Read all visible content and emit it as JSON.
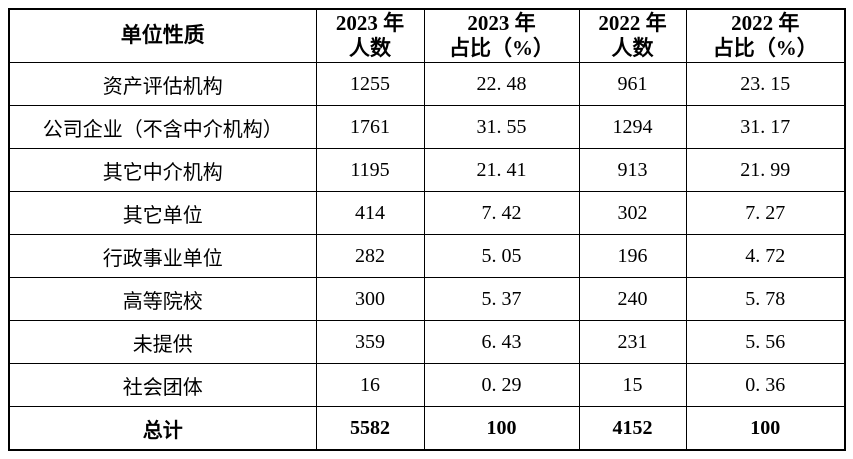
{
  "table": {
    "headers": [
      {
        "line1": "单位性质",
        "line2": ""
      },
      {
        "line1": "2023 年",
        "line2": "人数"
      },
      {
        "line1": "2023 年",
        "line2": "占比（%）"
      },
      {
        "line1": "2022 年",
        "line2": "人数"
      },
      {
        "line1": "2022 年",
        "line2": "占比（%）"
      }
    ],
    "rows": [
      {
        "label": "资产评估机构",
        "count_2023": "1255",
        "pct_2023": "22. 48",
        "count_2022": "961",
        "pct_2022": "23. 15"
      },
      {
        "label": "公司企业（不含中介机构）",
        "count_2023": "1761",
        "pct_2023": "31. 55",
        "count_2022": "1294",
        "pct_2022": "31. 17"
      },
      {
        "label": "其它中介机构",
        "count_2023": "1195",
        "pct_2023": "21. 41",
        "count_2022": "913",
        "pct_2022": "21. 99"
      },
      {
        "label": "其它单位",
        "count_2023": "414",
        "pct_2023": "7. 42",
        "count_2022": "302",
        "pct_2022": "7. 27"
      },
      {
        "label": "行政事业单位",
        "count_2023": "282",
        "pct_2023": "5. 05",
        "count_2022": "196",
        "pct_2022": "4. 72"
      },
      {
        "label": "高等院校",
        "count_2023": "300",
        "pct_2023": "5. 37",
        "count_2022": "240",
        "pct_2022": "5. 78"
      },
      {
        "label": "未提供",
        "count_2023": "359",
        "pct_2023": "6. 43",
        "count_2022": "231",
        "pct_2022": "5. 56"
      },
      {
        "label": "社会团体",
        "count_2023": "16",
        "pct_2023": "0. 29",
        "count_2022": "15",
        "pct_2022": "0. 36"
      }
    ],
    "total": {
      "label": "总计",
      "count_2023": "5582",
      "pct_2023": "100",
      "count_2022": "4152",
      "pct_2022": "100"
    }
  },
  "chart_data": {
    "type": "table",
    "title": "",
    "columns": [
      "单位性质",
      "2023 年人数",
      "2023 年占比（%）",
      "2022 年人数",
      "2022 年占比（%）"
    ],
    "rows": [
      [
        "资产评估机构",
        1255,
        22.48,
        961,
        23.15
      ],
      [
        "公司企业（不含中介机构）",
        1761,
        31.55,
        1294,
        31.17
      ],
      [
        "其它中介机构",
        1195,
        21.41,
        913,
        21.99
      ],
      [
        "其它单位",
        414,
        7.42,
        302,
        7.27
      ],
      [
        "行政事业单位",
        282,
        5.05,
        196,
        4.72
      ],
      [
        "高等院校",
        300,
        5.37,
        240,
        5.78
      ],
      [
        "未提供",
        359,
        6.43,
        231,
        5.56
      ],
      [
        "社会团体",
        16,
        0.29,
        15,
        0.36
      ],
      [
        "总计",
        5582,
        100,
        4152,
        100
      ]
    ]
  },
  "colors": {
    "border": "#000000",
    "text": "#000000",
    "background": "#ffffff"
  }
}
